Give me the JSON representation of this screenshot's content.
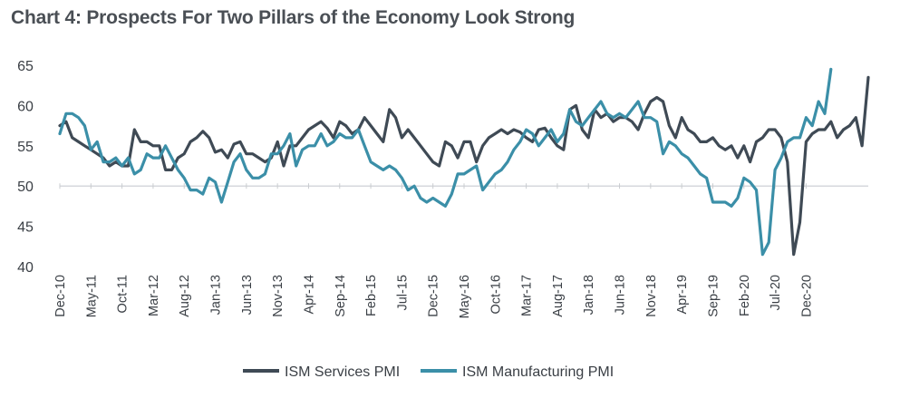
{
  "chart_data": {
    "type": "line",
    "title": "Chart 4: Prospects For Two Pillars of the Economy Look Strong",
    "xlabel": "",
    "ylabel": "",
    "ylim": [
      40,
      65
    ],
    "yticks": [
      40,
      45,
      50,
      55,
      60,
      65
    ],
    "x_start": "Dec-10",
    "x_end": "Mar-21",
    "xtick_labels": [
      "Dec-10",
      "May-11",
      "Oct-11",
      "Mar-12",
      "Aug-12",
      "Jan-13",
      "Jun-13",
      "Nov-13",
      "Apr-14",
      "Sep-14",
      "Feb-15",
      "Jul-15",
      "Dec-15",
      "May-16",
      "Oct-16",
      "Mar-17",
      "Aug-17",
      "Jan-18",
      "Jun-18",
      "Nov-18",
      "Apr-19",
      "Sep-19",
      "Feb-20",
      "Jul-20",
      "Dec-20"
    ],
    "baseline": 50,
    "grid": false,
    "legend": "bottom",
    "series": [
      {
        "name": "ISM Services PMI",
        "color": "#3f4a55",
        "values": [
          57.5,
          58,
          56,
          55.5,
          55,
          54.5,
          54,
          53.5,
          52.5,
          53,
          52.5,
          52.5,
          57,
          55.5,
          55.5,
          55,
          55,
          52,
          52,
          53.5,
          54,
          55.5,
          56,
          56.8,
          56,
          54.2,
          54.5,
          53.5,
          55.2,
          55.5,
          54,
          54,
          53.5,
          53,
          53.5,
          55.5,
          52.5,
          55,
          55,
          56,
          57,
          57.5,
          58,
          57.2,
          56,
          58,
          57.5,
          56.5,
          57,
          58.5,
          57.5,
          56.5,
          55.5,
          59.5,
          58.5,
          56,
          57,
          56,
          55,
          54,
          53,
          52.5,
          55.5,
          55,
          53.5,
          55.5,
          55.5,
          53,
          55,
          56,
          56.5,
          57,
          56.5,
          57,
          56.7,
          56,
          55.5,
          57,
          57.2,
          56,
          55,
          54.5,
          59.5,
          60,
          57,
          56,
          59.5,
          58.5,
          59,
          58,
          58.5,
          58.5,
          58,
          57,
          59,
          60.5,
          61,
          60.5,
          57.5,
          56,
          58.5,
          57,
          56.5,
          55.5,
          55.5,
          56,
          55,
          54.5,
          55,
          53.5,
          55,
          53,
          55.5,
          56,
          57,
          57,
          56,
          53,
          41.5,
          45.5,
          55.5,
          56.5,
          57,
          57,
          58,
          56,
          57,
          57.5,
          58.5,
          55,
          63.5
        ]
      },
      {
        "name": "ISM Manufacturing PMI",
        "color": "#3b8fa8",
        "values": [
          56.5,
          59,
          59,
          58.5,
          57.5,
          54.5,
          55.5,
          53,
          53,
          53.5,
          52.5,
          53.5,
          51.5,
          52,
          54,
          53.5,
          53.5,
          55,
          53.5,
          52,
          51,
          49.5,
          49.5,
          49,
          51,
          50.5,
          48,
          50.5,
          53,
          54,
          52,
          51,
          51,
          51.5,
          54,
          54,
          55,
          56.5,
          52.5,
          54.5,
          55,
          55,
          56.5,
          55,
          55.5,
          56.5,
          56,
          56,
          57,
          55,
          53,
          52.5,
          52,
          52.5,
          52,
          51,
          49.5,
          50,
          48.5,
          48,
          48.5,
          48,
          47.5,
          49,
          51.5,
          51.5,
          52,
          52.5,
          49.5,
          50.5,
          51.5,
          52,
          53,
          54.5,
          55.5,
          57,
          56.5,
          55,
          56,
          57,
          55.5,
          56.5,
          59.5,
          58,
          57.5,
          58.5,
          59.5,
          60.5,
          59,
          58.5,
          59,
          58.5,
          59.5,
          60.5,
          58.5,
          58.5,
          58,
          54,
          55.5,
          55,
          54,
          53.5,
          52.5,
          51.5,
          51,
          48,
          48,
          48,
          47.5,
          48.5,
          51,
          50.5,
          49.5,
          41.5,
          43,
          52,
          53.5,
          55.5,
          56,
          56,
          58.5,
          57.5,
          60.5,
          59,
          64.5
        ]
      }
    ]
  }
}
